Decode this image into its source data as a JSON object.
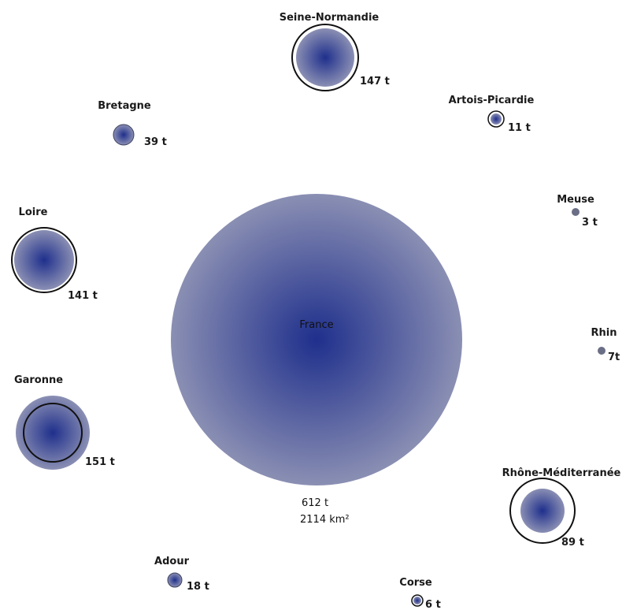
{
  "colors": {
    "bubble_core": "#1f2f8c",
    "bubble_edge": "#8a8fb3",
    "ring": "#111111"
  },
  "center": {
    "name": "France",
    "tonnage": "612 t",
    "area": "2114 km²"
  },
  "basins": [
    {
      "id": "seine-normandie",
      "name": "Seine-Normandie",
      "value_label": "147 t",
      "tonnage": 147
    },
    {
      "id": "artois-picardie",
      "name": "Artois-Picardie",
      "value_label": "11 t",
      "tonnage": 11
    },
    {
      "id": "meuse",
      "name": "Meuse",
      "value_label": "3 t",
      "tonnage": 3
    },
    {
      "id": "rhin",
      "name": "Rhin",
      "value_label": "7t",
      "tonnage": 7
    },
    {
      "id": "rhone-mediterranee",
      "name": "Rhône-Méditerranée",
      "value_label": "89 t",
      "tonnage": 89
    },
    {
      "id": "corse",
      "name": "Corse",
      "value_label": "6 t",
      "tonnage": 6
    },
    {
      "id": "adour",
      "name": "Adour",
      "value_label": "18 t",
      "tonnage": 18
    },
    {
      "id": "garonne",
      "name": "Garonne",
      "value_label": "151 t",
      "tonnage": 151
    },
    {
      "id": "loire",
      "name": "Loire",
      "value_label": "141 t",
      "tonnage": 141
    },
    {
      "id": "bretagne",
      "name": "Bretagne",
      "value_label": "39 t",
      "tonnage": 39
    }
  ]
}
